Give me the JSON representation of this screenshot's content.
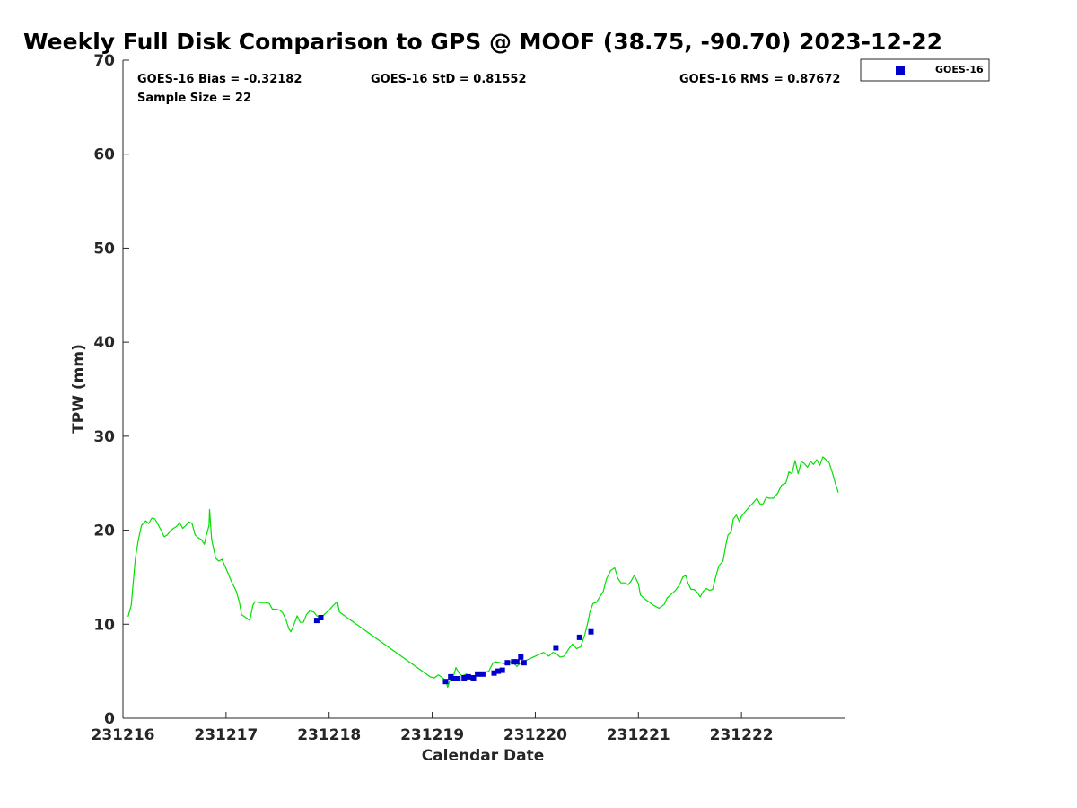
{
  "chart_data": {
    "type": "scatter",
    "title": "Weekly Full Disk Comparison to GPS @ MOOF (38.75, -90.70) 2023-12-22",
    "xlabel": "Calendar Date",
    "ylabel": "TPW (mm)",
    "xlim": [
      0,
      7
    ],
    "ylim": [
      0,
      70
    ],
    "x_ticks": [
      {
        "value": 0,
        "label": "231216"
      },
      {
        "value": 1,
        "label": "231217"
      },
      {
        "value": 2,
        "label": "231218"
      },
      {
        "value": 3,
        "label": "231219"
      },
      {
        "value": 4,
        "label": "231220"
      },
      {
        "value": 5,
        "label": "231221"
      },
      {
        "value": 6,
        "label": "231222"
      }
    ],
    "y_ticks": [
      {
        "value": 0,
        "label": "0"
      },
      {
        "value": 10,
        "label": "10"
      },
      {
        "value": 20,
        "label": "20"
      },
      {
        "value": 30,
        "label": "30"
      },
      {
        "value": 40,
        "label": "40"
      },
      {
        "value": 50,
        "label": "50"
      },
      {
        "value": 60,
        "label": "60"
      },
      {
        "value": 70,
        "label": "70"
      }
    ],
    "stats": {
      "bias": "GOES-16 Bias = -0.32182",
      "std": "GOES-16 StD = 0.81552",
      "rms": "GOES-16 RMS = 0.87672",
      "sample": "Sample Size = 22"
    },
    "legend": {
      "position": "top-right-outside",
      "entries": [
        {
          "label": "GOES-16",
          "color": "#0000cc",
          "marker": "square"
        }
      ]
    },
    "gps_line": {
      "color": "#00e000",
      "points": [
        [
          0.05,
          10.8
        ],
        [
          0.08,
          12.0
        ],
        [
          0.12,
          17.0
        ],
        [
          0.15,
          19.0
        ],
        [
          0.18,
          20.5
        ],
        [
          0.22,
          21.0
        ],
        [
          0.25,
          20.7
        ],
        [
          0.28,
          21.3
        ],
        [
          0.31,
          21.2
        ],
        [
          0.34,
          20.6
        ],
        [
          0.37,
          20.0
        ],
        [
          0.4,
          19.3
        ],
        [
          0.43,
          19.5
        ],
        [
          0.46,
          19.9
        ],
        [
          0.49,
          20.2
        ],
        [
          0.52,
          20.4
        ],
        [
          0.55,
          20.8
        ],
        [
          0.58,
          20.2
        ],
        [
          0.61,
          20.5
        ],
        [
          0.64,
          20.9
        ],
        [
          0.67,
          20.7
        ],
        [
          0.7,
          19.5
        ],
        [
          0.73,
          19.2
        ],
        [
          0.76,
          19.0
        ],
        [
          0.79,
          18.5
        ],
        [
          0.81,
          19.5
        ],
        [
          0.835,
          20.5
        ],
        [
          0.84,
          22.2
        ],
        [
          0.86,
          19.0
        ],
        [
          0.88,
          18.0
        ],
        [
          0.9,
          17.0
        ],
        [
          0.93,
          16.7
        ],
        [
          0.96,
          16.9
        ],
        [
          1.0,
          15.9
        ],
        [
          1.05,
          14.6
        ],
        [
          1.1,
          13.5
        ],
        [
          1.13,
          12.3
        ],
        [
          1.15,
          11.0
        ],
        [
          1.18,
          10.8
        ],
        [
          1.23,
          10.4
        ],
        [
          1.26,
          12.0
        ],
        [
          1.28,
          12.4
        ],
        [
          1.33,
          12.3
        ],
        [
          1.38,
          12.3
        ],
        [
          1.42,
          12.2
        ],
        [
          1.45,
          11.6
        ],
        [
          1.48,
          11.6
        ],
        [
          1.52,
          11.5
        ],
        [
          1.55,
          11.2
        ],
        [
          1.58,
          10.5
        ],
        [
          1.61,
          9.5
        ],
        [
          1.63,
          9.2
        ],
        [
          1.66,
          10.0
        ],
        [
          1.69,
          10.9
        ],
        [
          1.72,
          10.2
        ],
        [
          1.75,
          10.2
        ],
        [
          1.78,
          11.0
        ],
        [
          1.81,
          11.4
        ],
        [
          1.85,
          11.3
        ],
        [
          1.88,
          10.9
        ],
        [
          1.92,
          10.6
        ],
        [
          1.95,
          11.0
        ],
        [
          2.0,
          11.5
        ],
        [
          2.04,
          12.0
        ],
        [
          2.08,
          12.4
        ],
        [
          2.1,
          11.3
        ],
        [
          2.15,
          10.9
        ],
        [
          2.98,
          4.4
        ],
        [
          3.02,
          4.3
        ],
        [
          3.06,
          4.6
        ],
        [
          3.1,
          4.3
        ],
        [
          3.13,
          4.0
        ],
        [
          3.15,
          3.3
        ],
        [
          3.18,
          4.3
        ],
        [
          3.21,
          4.6
        ],
        [
          3.23,
          5.4
        ],
        [
          3.26,
          4.8
        ],
        [
          3.29,
          4.5
        ],
        [
          3.33,
          4.7
        ],
        [
          3.36,
          4.5
        ],
        [
          3.4,
          4.3
        ],
        [
          3.44,
          4.7
        ],
        [
          3.48,
          4.6
        ],
        [
          3.52,
          4.9
        ],
        [
          3.55,
          5.0
        ],
        [
          3.59,
          5.9
        ],
        [
          3.62,
          6.0
        ],
        [
          3.66,
          5.9
        ],
        [
          3.7,
          5.8
        ],
        [
          3.73,
          6.1
        ],
        [
          3.76,
          6.0
        ],
        [
          3.79,
          5.9
        ],
        [
          3.82,
          5.5
        ],
        [
          3.86,
          5.9
        ],
        [
          3.92,
          6.2
        ],
        [
          4.0,
          6.6
        ],
        [
          4.08,
          7.0
        ],
        [
          4.13,
          6.6
        ],
        [
          4.17,
          7.0
        ],
        [
          4.2,
          6.9
        ],
        [
          4.24,
          6.5
        ],
        [
          4.28,
          6.6
        ],
        [
          4.32,
          7.3
        ],
        [
          4.36,
          7.9
        ],
        [
          4.4,
          7.4
        ],
        [
          4.44,
          7.6
        ],
        [
          4.48,
          8.9
        ],
        [
          4.51,
          10.2
        ],
        [
          4.53,
          11.3
        ],
        [
          4.56,
          12.2
        ],
        [
          4.59,
          12.3
        ],
        [
          4.62,
          12.8
        ],
        [
          4.66,
          13.5
        ],
        [
          4.69,
          14.8
        ],
        [
          4.73,
          15.7
        ],
        [
          4.77,
          16.0
        ],
        [
          4.8,
          14.9
        ],
        [
          4.83,
          14.4
        ],
        [
          4.87,
          14.4
        ],
        [
          4.9,
          14.2
        ],
        [
          4.93,
          14.6
        ],
        [
          4.96,
          15.2
        ],
        [
          5.0,
          14.3
        ],
        [
          5.02,
          13.1
        ],
        [
          5.06,
          12.7
        ],
        [
          5.1,
          12.4
        ],
        [
          5.15,
          12.0
        ],
        [
          5.2,
          11.7
        ],
        [
          5.25,
          12.1
        ],
        [
          5.28,
          12.8
        ],
        [
          5.32,
          13.2
        ],
        [
          5.36,
          13.6
        ],
        [
          5.4,
          14.2
        ],
        [
          5.43,
          15.0
        ],
        [
          5.46,
          15.2
        ],
        [
          5.48,
          14.4
        ],
        [
          5.51,
          13.7
        ],
        [
          5.54,
          13.7
        ],
        [
          5.57,
          13.4
        ],
        [
          5.6,
          12.9
        ],
        [
          5.63,
          13.5
        ],
        [
          5.66,
          13.8
        ],
        [
          5.69,
          13.6
        ],
        [
          5.72,
          13.7
        ],
        [
          5.75,
          15.0
        ],
        [
          5.78,
          16.2
        ],
        [
          5.82,
          16.7
        ],
        [
          5.85,
          18.5
        ],
        [
          5.87,
          19.5
        ],
        [
          5.9,
          19.8
        ],
        [
          5.92,
          21.2
        ],
        [
          5.95,
          21.6
        ],
        [
          5.98,
          20.9
        ],
        [
          6.0,
          21.5
        ],
        [
          6.03,
          21.9
        ],
        [
          6.07,
          22.4
        ],
        [
          6.12,
          23.0
        ],
        [
          6.15,
          23.4
        ],
        [
          6.18,
          22.8
        ],
        [
          6.21,
          22.8
        ],
        [
          6.24,
          23.5
        ],
        [
          6.27,
          23.4
        ],
        [
          6.31,
          23.4
        ],
        [
          6.35,
          23.9
        ],
        [
          6.39,
          24.8
        ],
        [
          6.43,
          25.0
        ],
        [
          6.46,
          26.2
        ],
        [
          6.49,
          26.0
        ],
        [
          6.52,
          27.4
        ],
        [
          6.55,
          26.0
        ],
        [
          6.58,
          27.3
        ],
        [
          6.61,
          27.1
        ],
        [
          6.64,
          26.7
        ],
        [
          6.67,
          27.3
        ],
        [
          6.7,
          27.0
        ],
        [
          6.73,
          27.5
        ],
        [
          6.76,
          26.9
        ],
        [
          6.79,
          27.8
        ],
        [
          6.82,
          27.5
        ],
        [
          6.85,
          27.2
        ],
        [
          6.87,
          26.5
        ],
        [
          6.89,
          25.8
        ],
        [
          6.91,
          25.0
        ],
        [
          6.94,
          24.0
        ]
      ]
    },
    "series": [
      {
        "name": "GOES-16",
        "color": "#0000cc",
        "points": [
          [
            1.88,
            10.4
          ],
          [
            1.92,
            10.7
          ],
          [
            3.13,
            3.9
          ],
          [
            3.18,
            4.4
          ],
          [
            3.21,
            4.2
          ],
          [
            3.25,
            4.2
          ],
          [
            3.31,
            4.3
          ],
          [
            3.35,
            4.4
          ],
          [
            3.4,
            4.3
          ],
          [
            3.44,
            4.7
          ],
          [
            3.49,
            4.7
          ],
          [
            3.6,
            4.8
          ],
          [
            3.64,
            5.0
          ],
          [
            3.68,
            5.1
          ],
          [
            3.73,
            5.9
          ],
          [
            3.79,
            6.0
          ],
          [
            3.82,
            6.0
          ],
          [
            3.86,
            6.5
          ],
          [
            3.89,
            5.9
          ],
          [
            4.2,
            7.5
          ],
          [
            4.43,
            8.6
          ],
          [
            4.54,
            9.2
          ]
        ]
      }
    ]
  }
}
